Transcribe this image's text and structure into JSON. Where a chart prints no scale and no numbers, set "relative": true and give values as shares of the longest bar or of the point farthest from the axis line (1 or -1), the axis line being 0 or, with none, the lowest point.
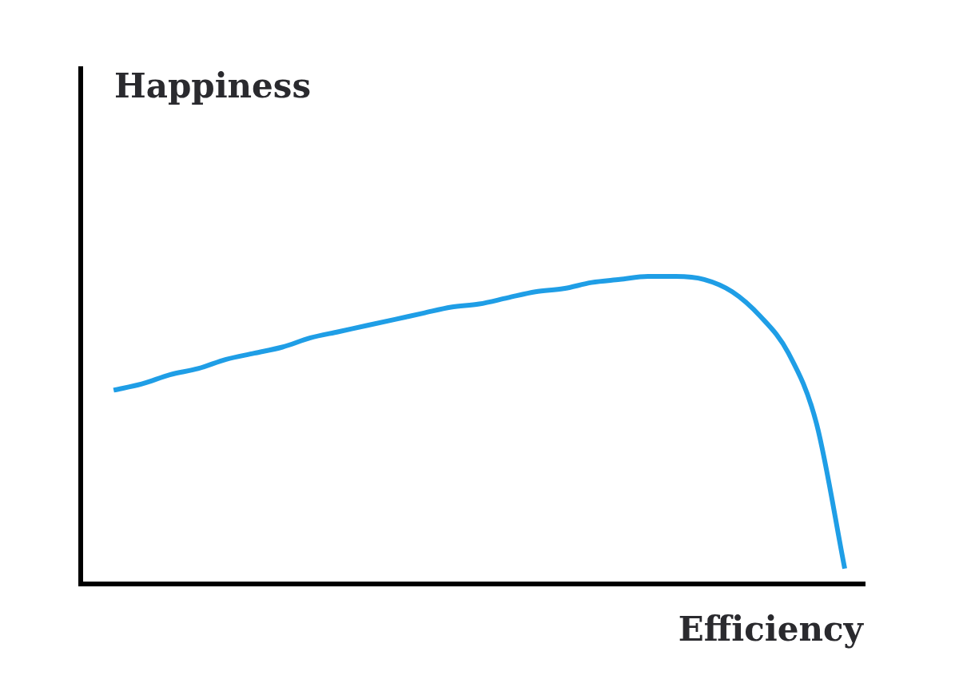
{
  "chart_data": {
    "type": "line",
    "xlabel": "Efficiency",
    "annotations": [
      "Happiness"
    ],
    "relative": true,
    "categories": [
      null,
      null,
      null,
      null,
      null,
      null,
      null,
      null,
      null,
      null,
      null,
      null,
      null,
      null,
      null,
      null,
      null,
      null,
      null,
      null,
      null,
      null,
      null,
      null,
      null,
      null,
      null
    ],
    "color": "#1f9ee6",
    "values": [
      0.63,
      0.65,
      0.68,
      0.7,
      0.73,
      0.75,
      0.77,
      0.8,
      0.82,
      0.84,
      0.86,
      0.88,
      0.9,
      0.91,
      0.93,
      0.95,
      0.96,
      0.98,
      0.99,
      1.0,
      1.0,
      0.99,
      0.95,
      0.87,
      0.75,
      0.52,
      0.05
    ]
  }
}
